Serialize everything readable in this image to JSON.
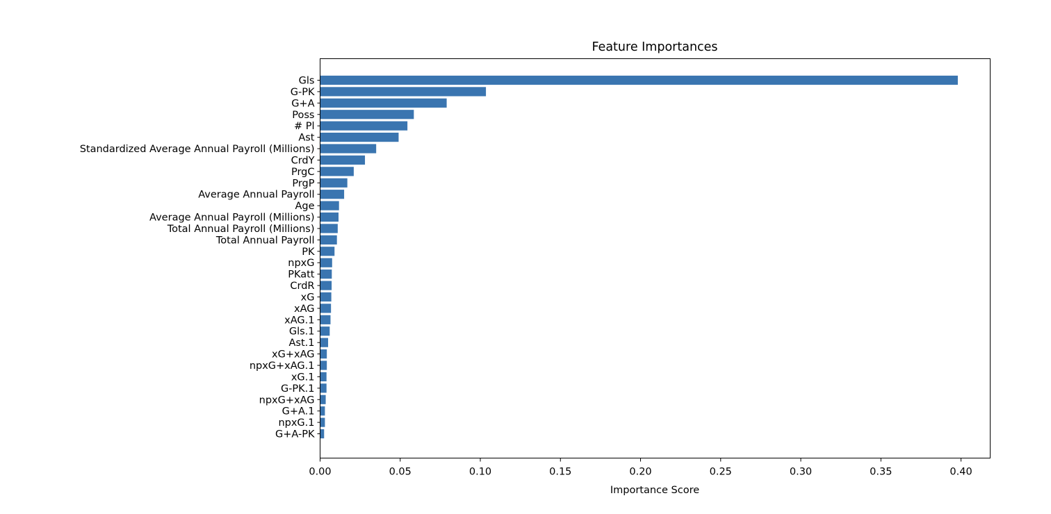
{
  "chart_data": {
    "type": "bar",
    "orientation": "horizontal",
    "title": "Feature Importances",
    "xlabel": "Importance Score",
    "ylabel": "",
    "xlim": [
      0.0,
      0.4182
    ],
    "xticks": [
      0.0,
      0.05,
      0.1,
      0.15,
      0.2,
      0.25,
      0.3,
      0.35,
      0.4
    ],
    "xtick_labels": [
      "0.00",
      "0.05",
      "0.10",
      "0.15",
      "0.20",
      "0.25",
      "0.30",
      "0.35",
      "0.40"
    ],
    "grid": false,
    "bar_color": "#3a75b0",
    "categories": [
      "Gls",
      "G-PK",
      "G+A",
      "Poss",
      "# Pl",
      "Ast",
      "Standardized Average Annual Payroll (Millions)",
      "CrdY",
      "PrgC",
      "PrgP",
      "Average Annual Payroll",
      "Age",
      "Average Annual Payroll (Millions)",
      "Total Annual Payroll (Millions)",
      "Total Annual Payroll",
      "PK",
      "npxG",
      "PKatt",
      "CrdR",
      "xG",
      "xAG",
      "xAG.1",
      "Gls.1",
      "Ast.1",
      "xG+xAG",
      "npxG+xAG.1",
      "xG.1",
      "G-PK.1",
      "npxG+xAG",
      "G+A.1",
      "npxG.1",
      "G+A-PK"
    ],
    "values": [
      0.398,
      0.1035,
      0.079,
      0.0585,
      0.0545,
      0.049,
      0.035,
      0.028,
      0.021,
      0.017,
      0.015,
      0.0118,
      0.0115,
      0.011,
      0.0105,
      0.009,
      0.0075,
      0.0073,
      0.0072,
      0.007,
      0.0068,
      0.0065,
      0.006,
      0.005,
      0.0042,
      0.0042,
      0.004,
      0.004,
      0.0035,
      0.003,
      0.003,
      0.0025
    ]
  }
}
